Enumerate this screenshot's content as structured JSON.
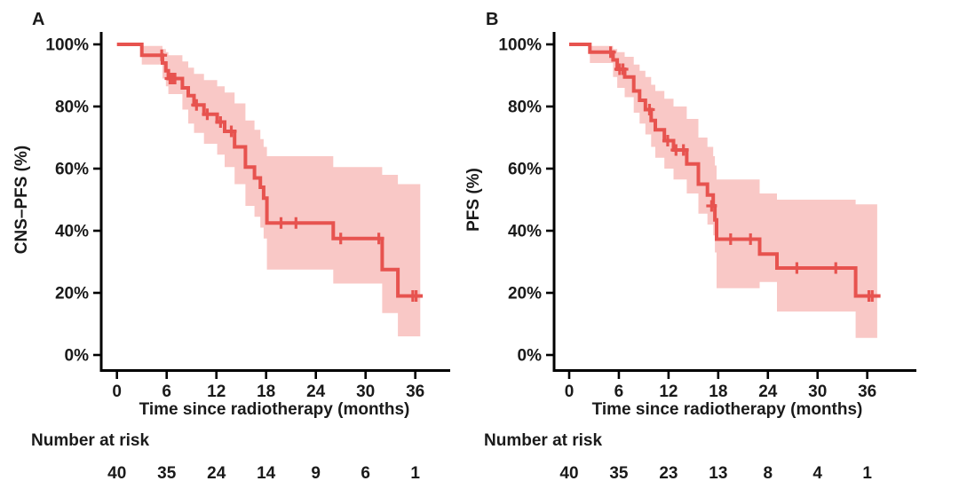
{
  "figure": {
    "background": "#ffffff",
    "line_color": "#e7534f",
    "band_color": "#f9c8c6",
    "axis_color": "#000000",
    "text_color": "#1a1a1a"
  },
  "chart_data": [
    {
      "type": "km_survival",
      "panel_label": "A",
      "ylabel": "CNS–PFS (%)",
      "xlabel": "Time since radiotherapy (months)",
      "x_ticks": [
        0,
        6,
        12,
        18,
        24,
        30,
        36
      ],
      "y_tick_values": [
        0,
        20,
        40,
        60,
        80,
        100
      ],
      "y_tick_labels": [
        "0%",
        "20%",
        "40%",
        "60%",
        "80%",
        "100%"
      ],
      "xlim": [
        0,
        40
      ],
      "ylim": [
        0,
        100
      ],
      "risk_label": "Number at risk",
      "risk_times": [
        0,
        6,
        12,
        18,
        24,
        30,
        36
      ],
      "risk_counts": [
        40,
        35,
        24,
        14,
        9,
        6,
        1
      ],
      "steps": [
        [
          0,
          100
        ],
        [
          3,
          96.5
        ],
        [
          5.5,
          94
        ],
        [
          5.9,
          91.5
        ],
        [
          6.2,
          89
        ],
        [
          7.9,
          86
        ],
        [
          8.6,
          83.5
        ],
        [
          9.3,
          80.5
        ],
        [
          10.5,
          77.5
        ],
        [
          12.1,
          75
        ],
        [
          13,
          72
        ],
        [
          14.2,
          67
        ],
        [
          15.5,
          60.5
        ],
        [
          16.6,
          57
        ],
        [
          17.3,
          54
        ],
        [
          17.7,
          50.5
        ],
        [
          18.1,
          42.5
        ],
        [
          26.1,
          37.5
        ],
        [
          32,
          27.5
        ],
        [
          33.9,
          19
        ]
      ],
      "curve_end": 36.9,
      "censors": [
        [
          5.4,
          96.5
        ],
        [
          6.4,
          89
        ],
        [
          6.7,
          89
        ],
        [
          7,
          89
        ],
        [
          9.6,
          80.5
        ],
        [
          10.9,
          77.5
        ],
        [
          12.5,
          75
        ],
        [
          13.8,
          72
        ],
        [
          19.8,
          42.5
        ],
        [
          21.6,
          42.5
        ],
        [
          27,
          37.5
        ],
        [
          31.6,
          37.5
        ],
        [
          35.7,
          19
        ],
        [
          36.1,
          19
        ]
      ],
      "band": [
        [
          3,
          93.5,
          99.5
        ],
        [
          5.5,
          89,
          98.5
        ],
        [
          5.9,
          86.5,
          97.5
        ],
        [
          6.2,
          84,
          96.5
        ],
        [
          7.9,
          79,
          94.5
        ],
        [
          8.6,
          74.5,
          92.5
        ],
        [
          9.3,
          71.5,
          90.5
        ],
        [
          10.5,
          68,
          88.5
        ],
        [
          12.1,
          64.5,
          86.5
        ],
        [
          13,
          60.5,
          84.5
        ],
        [
          14.2,
          55,
          81
        ],
        [
          15.5,
          48,
          75.5
        ],
        [
          16.6,
          44.5,
          72.5
        ],
        [
          17.3,
          41,
          69.5
        ],
        [
          17.7,
          37.5,
          67
        ],
        [
          18.1,
          27.5,
          64
        ],
        [
          26.1,
          23,
          60.5
        ],
        [
          32,
          13.5,
          58
        ],
        [
          33.9,
          6,
          55
        ]
      ],
      "band_end": 36.6
    },
    {
      "type": "km_survival",
      "panel_label": "B",
      "ylabel": "PFS (%)",
      "xlabel": "Time since radiotherapy (months)",
      "x_ticks": [
        0,
        6,
        12,
        18,
        24,
        30,
        36
      ],
      "y_tick_values": [
        0,
        20,
        40,
        60,
        80,
        100
      ],
      "y_tick_labels": [
        "0%",
        "20%",
        "40%",
        "60%",
        "80%",
        "100%"
      ],
      "xlim": [
        0,
        40
      ],
      "ylim": [
        0,
        100
      ],
      "risk_label": "Number at risk",
      "risk_times": [
        0,
        6,
        12,
        18,
        24,
        30,
        36
      ],
      "risk_counts": [
        40,
        35,
        23,
        13,
        8,
        4,
        1
      ],
      "steps": [
        [
          0,
          100
        ],
        [
          2.5,
          97.5
        ],
        [
          5.3,
          95
        ],
        [
          5.8,
          92
        ],
        [
          6.7,
          89.5
        ],
        [
          7.8,
          85
        ],
        [
          8.5,
          82
        ],
        [
          9.2,
          79
        ],
        [
          9.9,
          75.5
        ],
        [
          10.4,
          72.5
        ],
        [
          11.5,
          69
        ],
        [
          12.6,
          66
        ],
        [
          14.2,
          61.5
        ],
        [
          15.6,
          55
        ],
        [
          16.7,
          51.5
        ],
        [
          17.4,
          48
        ],
        [
          17.6,
          43.5
        ],
        [
          17.8,
          37.3
        ],
        [
          23,
          32.5
        ],
        [
          25.1,
          28
        ],
        [
          34.6,
          19
        ]
      ],
      "curve_end": 37.6,
      "censors": [
        [
          5,
          97.5
        ],
        [
          6.1,
          92
        ],
        [
          6.5,
          92
        ],
        [
          9.7,
          79
        ],
        [
          11.9,
          69
        ],
        [
          12.9,
          66
        ],
        [
          13.8,
          66
        ],
        [
          17.2,
          48
        ],
        [
          19.5,
          37.3
        ],
        [
          21.9,
          37.3
        ],
        [
          27.5,
          28
        ],
        [
          32.2,
          28
        ],
        [
          36.2,
          19
        ],
        [
          36.6,
          19
        ]
      ],
      "band": [
        [
          2.5,
          94,
          99.5
        ],
        [
          5.3,
          89.5,
          98.5
        ],
        [
          5.8,
          86,
          97.5
        ],
        [
          6.7,
          83,
          96
        ],
        [
          7.8,
          78,
          93.5
        ],
        [
          8.5,
          74.5,
          91.5
        ],
        [
          9.2,
          71,
          89.5
        ],
        [
          9.9,
          67,
          87
        ],
        [
          10.4,
          63.5,
          85
        ],
        [
          11.5,
          60,
          82.5
        ],
        [
          12.6,
          56.5,
          80
        ],
        [
          14.2,
          52,
          76
        ],
        [
          15.6,
          45.5,
          70
        ],
        [
          16.7,
          42,
          67
        ],
        [
          17.4,
          38.5,
          64
        ],
        [
          17.6,
          33,
          61
        ],
        [
          17.8,
          21.5,
          56.5
        ],
        [
          23,
          23.5,
          52
        ],
        [
          25.1,
          14,
          50
        ],
        [
          34.6,
          5.5,
          48.5
        ]
      ],
      "band_end": 37.2
    }
  ]
}
